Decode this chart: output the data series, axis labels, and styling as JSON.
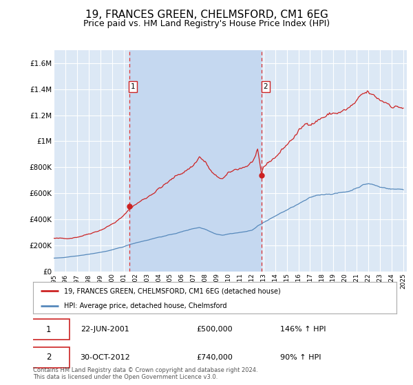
{
  "title": "19, FRANCES GREEN, CHELMSFORD, CM1 6EG",
  "subtitle": "Price paid vs. HM Land Registry's House Price Index (HPI)",
  "title_fontsize": 11,
  "subtitle_fontsize": 9,
  "background_color": "#ffffff",
  "plot_bg_color": "#dce8f5",
  "shaded_region_color": "#c5d8f0",
  "grid_color": "#ffffff",
  "ylim": [
    0,
    1700000
  ],
  "yticks": [
    0,
    200000,
    400000,
    600000,
    800000,
    1000000,
    1200000,
    1400000,
    1600000
  ],
  "ytick_labels": [
    "£0",
    "£200K",
    "£400K",
    "£600K",
    "£800K",
    "£1M",
    "£1.2M",
    "£1.4M",
    "£1.6M"
  ],
  "xlim_start": 1995.0,
  "xlim_end": 2025.3,
  "xtick_years": [
    1995,
    1996,
    1997,
    1998,
    1999,
    2000,
    2001,
    2002,
    2003,
    2004,
    2005,
    2006,
    2007,
    2008,
    2009,
    2010,
    2011,
    2012,
    2013,
    2014,
    2015,
    2016,
    2017,
    2018,
    2019,
    2020,
    2021,
    2022,
    2023,
    2024,
    2025
  ],
  "red_line_color": "#cc2222",
  "blue_line_color": "#5588bb",
  "transaction1_x": 2001.47,
  "transaction1_y": 500000,
  "transaction1_label": "1",
  "transaction2_x": 2012.83,
  "transaction2_y": 740000,
  "transaction2_label": "2",
  "vline_color": "#dd3333",
  "vline_style": "--",
  "legend_label_red": "19, FRANCES GREEN, CHELMSFORD, CM1 6EG (detached house)",
  "legend_label_blue": "HPI: Average price, detached house, Chelmsford",
  "table_row1": [
    "1",
    "22-JUN-2001",
    "£500,000",
    "146% ↑ HPI"
  ],
  "table_row2": [
    "2",
    "30-OCT-2012",
    "£740,000",
    "90% ↑ HPI"
  ],
  "footer_text": "Contains HM Land Registry data © Crown copyright and database right 2024.\nThis data is licensed under the Open Government Licence v3.0."
}
